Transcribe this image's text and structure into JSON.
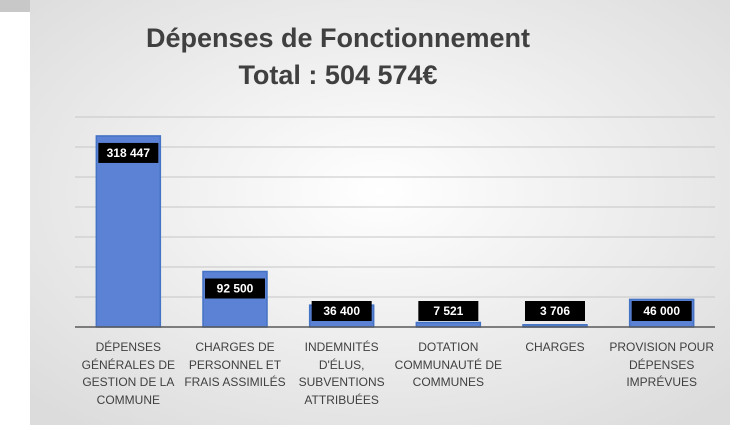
{
  "chart_data": {
    "type": "bar",
    "title": "Dépenses de Fonctionnement",
    "subtitle": "Total : 504 574€",
    "categories": [
      "DÉPENSES GÉNÉRALES DE GESTION DE LA COMMUNE",
      "CHARGES DE PERSONNEL ET FRAIS ASSIMILÉS",
      "INDEMNITÉS D'ÉLUS, SUBVENTIONS ATTRIBUÉES",
      "DOTATION COMMUNAUTÉ DE COMMUNES",
      "CHARGES",
      "PROVISION POUR DÉPENSES IMPRÉVUES"
    ],
    "values": [
      318447,
      92500,
      36400,
      7521,
      3706,
      46000
    ],
    "value_labels": [
      "318 447",
      "92 500",
      "36 400",
      "7 521",
      "3 706",
      "46 000"
    ],
    "color": "#4472c4",
    "ylim": [
      0,
      350000
    ],
    "yticks": [
      0,
      50000,
      100000,
      150000,
      200000,
      250000,
      300000,
      350000
    ],
    "grid": true
  }
}
